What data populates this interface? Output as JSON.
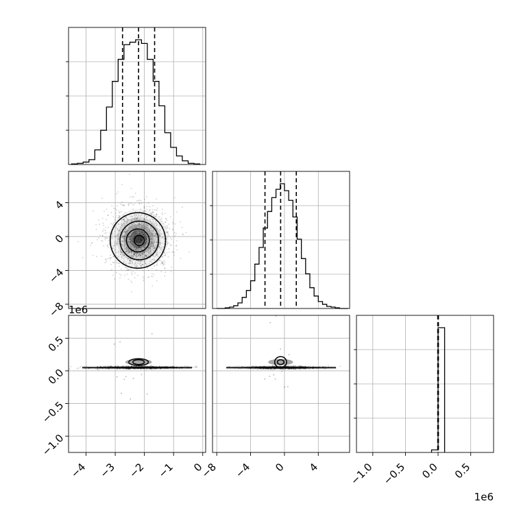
{
  "chart_data": {
    "type": "corner",
    "title": "",
    "parameters": [
      {
        "index": 0,
        "quantiles": [
          -2.75,
          -2.2,
          -1.65
        ],
        "range": [
          -4.6,
          0.1
        ],
        "tick_values": [
          -4,
          -3,
          -2,
          -1,
          0
        ],
        "tick_labels": [
          "−4",
          "−3",
          "−2",
          "−1",
          "0"
        ]
      },
      {
        "index": 1,
        "quantiles": [
          -2.3,
          -0.45,
          1.4
        ],
        "range": [
          -8.5,
          7.7
        ],
        "tick_values": [
          -8,
          -4,
          0,
          4
        ],
        "tick_labels": [
          "−8",
          "−4",
          "0",
          "4"
        ]
      },
      {
        "index": 2,
        "quantiles": [
          -0.005,
          0.0,
          0.005
        ],
        "range": [
          -1.25,
          0.85
        ],
        "tick_values": [
          -1.0,
          -0.5,
          0.0,
          0.5
        ],
        "tick_labels": [
          "−1.0",
          "−0.5",
          "0.0",
          "0.5"
        ],
        "offset_label": "1e6"
      }
    ],
    "histograms": [
      {
        "param": 0,
        "bin_centers": [
          -4.4,
          -4.2,
          -4.0,
          -3.8,
          -3.6,
          -3.4,
          -3.2,
          -3.0,
          -2.8,
          -2.6,
          -2.4,
          -2.2,
          -2.0,
          -1.8,
          -1.6,
          -1.4,
          -1.2,
          -1.0,
          -0.8,
          -0.6,
          -0.4,
          -0.2
        ],
        "counts": [
          0.005,
          0.01,
          0.02,
          0.04,
          0.12,
          0.28,
          0.47,
          0.68,
          0.86,
          0.98,
          1.0,
          1.02,
          0.99,
          0.86,
          0.68,
          0.48,
          0.26,
          0.14,
          0.07,
          0.03,
          0.01,
          0.005
        ]
      },
      {
        "param": 1,
        "bin_centers": [
          -7.75,
          -7.25,
          -6.75,
          -6.25,
          -5.75,
          -5.25,
          -4.75,
          -4.25,
          -3.75,
          -3.25,
          -2.75,
          -2.25,
          -1.75,
          -1.25,
          -0.75,
          -0.25,
          0.25,
          0.75,
          1.25,
          1.75,
          2.25,
          2.75,
          3.25,
          3.75,
          4.25,
          4.75,
          5.25,
          5.75,
          6.25,
          6.75,
          7.25
        ],
        "counts": [
          0.0,
          0.0,
          0.005,
          0.01,
          0.02,
          0.04,
          0.08,
          0.13,
          0.2,
          0.32,
          0.44,
          0.58,
          0.7,
          0.8,
          0.86,
          0.9,
          0.85,
          0.78,
          0.66,
          0.5,
          0.36,
          0.25,
          0.15,
          0.09,
          0.05,
          0.03,
          0.015,
          0.01,
          0.005,
          0.0,
          0.0
        ]
      },
      {
        "param": 2,
        "bin_centers": [
          -0.05,
          0.05
        ],
        "counts": [
          0.02,
          0.98
        ]
      }
    ],
    "scatter_panels": [
      {
        "x_param": 0,
        "y_param": 1,
        "center": [
          -2.2,
          -0.3
        ],
        "spread": [
          0.55,
          1.9
        ]
      },
      {
        "x_param": 0,
        "y_param": 2,
        "center": [
          -2.2,
          0.05
        ],
        "spread": [
          0.7,
          0.01
        ]
      },
      {
        "x_param": 1,
        "y_param": 2,
        "center": [
          -0.45,
          0.05
        ],
        "spread": [
          2.2,
          0.01
        ]
      }
    ],
    "grid": true,
    "legend": "none"
  }
}
